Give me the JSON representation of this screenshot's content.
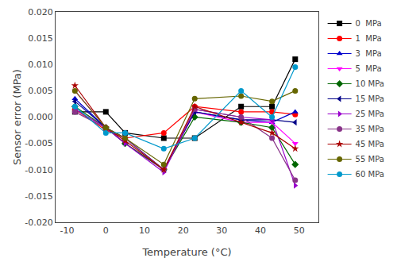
{
  "chart_data": {
    "type": "line",
    "xlabel": "Temperature (°C)",
    "ylabel": "Sensor error (MPa)",
    "x": [
      -8,
      0,
      5,
      15,
      23,
      35,
      43,
      49
    ],
    "series": [
      {
        "name": "0  MPa",
        "color": "#000000",
        "marker": "square",
        "values": [
          0.001,
          0.001,
          -0.003,
          -0.004,
          -0.004,
          0.002,
          0.002,
          0.011
        ]
      },
      {
        "name": "1  MPa",
        "color": "#ff0000",
        "marker": "circle",
        "values": [
          0.0015,
          -0.0025,
          -0.004,
          -0.003,
          0.002,
          0.001,
          0.001,
          0.0005
        ]
      },
      {
        "name": "3  MPa",
        "color": "#0000cc",
        "marker": "triangle-up",
        "values": [
          0.0035,
          -0.002,
          -0.005,
          -0.01,
          0.001,
          -0.0005,
          -0.001,
          0.001
        ]
      },
      {
        "name": "5  MPa",
        "color": "#ff00ff",
        "marker": "triangle-down",
        "values": [
          0.005,
          -0.002,
          -0.005,
          -0.01,
          0.001,
          -0.001,
          -0.001,
          -0.005
        ]
      },
      {
        "name": "10 MPa",
        "color": "#006600",
        "marker": "diamond",
        "values": [
          0.002,
          -0.002,
          -0.005,
          -0.01,
          0.0,
          -0.001,
          -0.002,
          -0.009
        ]
      },
      {
        "name": "15 MPa",
        "color": "#000088",
        "marker": "triangle-left",
        "values": [
          0.003,
          -0.002,
          -0.004,
          -0.01,
          0.001,
          -0.0005,
          -0.0005,
          -0.001
        ]
      },
      {
        "name": "25 MPa",
        "color": "#9900cc",
        "marker": "triangle-right",
        "values": [
          0.0015,
          -0.002,
          -0.005,
          -0.0105,
          0.0015,
          0.0,
          -0.0005,
          -0.013
        ]
      },
      {
        "name": "35 MPa",
        "color": "#883388",
        "marker": "circle",
        "values": [
          0.001,
          -0.002,
          -0.004,
          -0.01,
          0.0015,
          0.0,
          -0.004,
          -0.012
        ]
      },
      {
        "name": "45 MPa",
        "color": "#aa0000",
        "marker": "star",
        "values": [
          0.006,
          -0.002,
          -0.0045,
          -0.01,
          0.002,
          -0.001,
          -0.003,
          -0.006
        ]
      },
      {
        "name": "55 MPa",
        "color": "#666600",
        "marker": "circle",
        "values": [
          0.005,
          -0.002,
          -0.004,
          -0.009,
          0.0035,
          0.004,
          0.003,
          0.005
        ]
      },
      {
        "name": "60 MPa",
        "color": "#0099cc",
        "marker": "circle",
        "values": [
          0.002,
          -0.003,
          -0.003,
          -0.006,
          -0.004,
          0.005,
          0.0,
          0.0095
        ]
      }
    ],
    "xlim": [
      -13,
      55
    ],
    "xticks": [
      -10,
      0,
      10,
      20,
      30,
      40,
      50
    ],
    "ylim": [
      -0.02,
      0.02
    ],
    "yticks": [
      {
        "value": -0.02,
        "label": "-0.020"
      },
      {
        "value": -0.015,
        "label": "-0.015"
      },
      {
        "value": -0.01,
        "label": "-0.010"
      },
      {
        "value": -0.005,
        "label": "-0.005"
      },
      {
        "value": 0.0,
        "label": "0.000"
      },
      {
        "value": 0.005,
        "label": "0.005"
      },
      {
        "value": 0.01,
        "label": "0.010"
      },
      {
        "value": 0.015,
        "label": "0.015"
      },
      {
        "value": 0.02,
        "label": "0.020"
      }
    ],
    "grid": false,
    "legend": "right"
  }
}
